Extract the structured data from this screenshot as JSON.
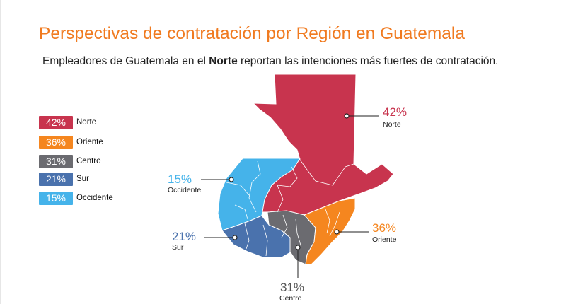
{
  "title": "Perspectivas de contratación por Región en Guatemala",
  "subtitle": {
    "before": "Empleadores de Guatemala en el ",
    "bold": "Norte",
    "after": " reportan las intenciones más fuertes de contratación."
  },
  "colors": {
    "norte": "#c8344e",
    "oriente": "#f5861f",
    "centro": "#6b6b70",
    "sur": "#4a72ad",
    "occidente": "#45b3ea",
    "title": "#f07a1f"
  },
  "regions": [
    {
      "key": "norte",
      "pct": "42%",
      "name": "Norte",
      "value": 42,
      "color": "#c8344e"
    },
    {
      "key": "oriente",
      "pct": "36%",
      "name": "Oriente",
      "value": 36,
      "color": "#f5861f"
    },
    {
      "key": "centro",
      "pct": "31%",
      "name": "Centro",
      "value": 31,
      "color": "#6b6b70"
    },
    {
      "key": "sur",
      "pct": "21%",
      "name": "Sur",
      "value": 21,
      "color": "#4a72ad"
    },
    {
      "key": "occidente",
      "pct": "15%",
      "name": "Occidente",
      "value": 15,
      "color": "#45b3ea"
    }
  ]
}
